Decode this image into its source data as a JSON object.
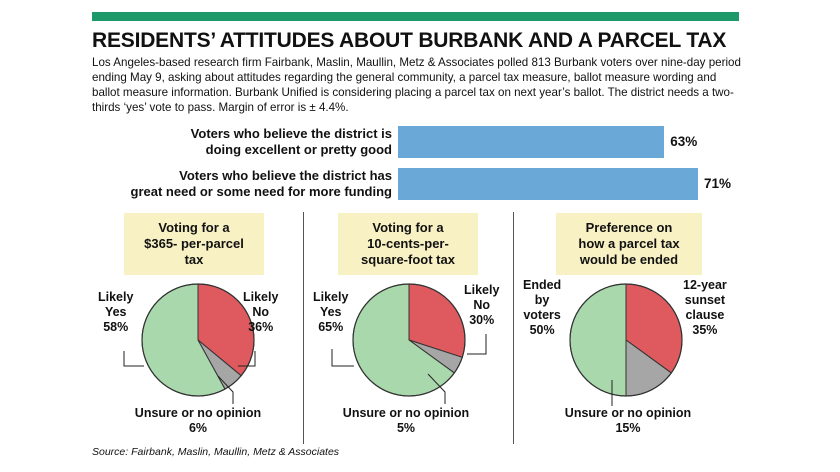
{
  "title": "RESIDENTS’ ATTITUDES ABOUT BURBANK AND A PARCEL TAX",
  "intro": "Los Angeles-based research firm Fairbank, Maslin, Maullin, Metz & Associates polled 813 Burbank voters over nine-day period ending May 9, asking about attitudes regarding the general community, a parcel tax measure, ballot measure wording and ballot measure information. Burbank Unified is considering placing a parcel tax on next year’s ballot. The district needs a two-thirds ‘yes’ vote to pass. Margin of error is ± 4.4%.",
  "source": "Source: Fairbank, Maslin, Maullin, Metz & Associates",
  "colors": {
    "accent_bar": "#1e9a6a",
    "bar": "#6aa8d8",
    "pie_yes": "#a9d8ad",
    "pie_no": "#df5a5e",
    "pie_unsure": "#a6a6a6",
    "panel_bg": "#f8f1c4"
  },
  "chart_data": [
    {
      "type": "bar",
      "categories": [
        "Voters who believe the district is doing excellent or pretty good",
        "Voters who believe the district has great need or some need for more funding"
      ],
      "values": [
        63,
        71
      ],
      "value_labels": [
        "63%",
        "71%"
      ],
      "label_lines": [
        [
          "Voters who believe the district is",
          "doing excellent or pretty good"
        ],
        [
          "Voters who believe the district has",
          "great need or some need for more funding"
        ]
      ]
    },
    {
      "type": "pie",
      "title_lines": [
        "Voting for a",
        "$365- per-parcel",
        "tax"
      ],
      "slices": [
        {
          "label_lines": [
            "Likely",
            "Yes",
            "58%"
          ],
          "value": 58
        },
        {
          "label_lines": [
            "Likely",
            "No",
            "36%"
          ],
          "value": 36
        },
        {
          "label_lines": [
            "Unsure or no opinion",
            "6%"
          ],
          "value": 6
        }
      ]
    },
    {
      "type": "pie",
      "title_lines": [
        "Voting for a",
        "10-cents-per-",
        "square-foot tax"
      ],
      "slices": [
        {
          "label_lines": [
            "Likely",
            "Yes",
            "65%"
          ],
          "value": 65
        },
        {
          "label_lines": [
            "Likely",
            "No",
            "30%"
          ],
          "value": 30
        },
        {
          "label_lines": [
            "Unsure or no opinion",
            "5%"
          ],
          "value": 5
        }
      ]
    },
    {
      "type": "pie",
      "title_lines": [
        "Preference on",
        "how a parcel tax",
        "would be ended"
      ],
      "slices": [
        {
          "label_lines": [
            "Ended",
            "by",
            "voters",
            "50%"
          ],
          "value": 50
        },
        {
          "label_lines": [
            "12-year",
            "sunset",
            "clause",
            "35%"
          ],
          "value": 35
        },
        {
          "label_lines": [
            "Unsure or no opinion",
            "15%"
          ],
          "value": 15
        }
      ]
    }
  ]
}
